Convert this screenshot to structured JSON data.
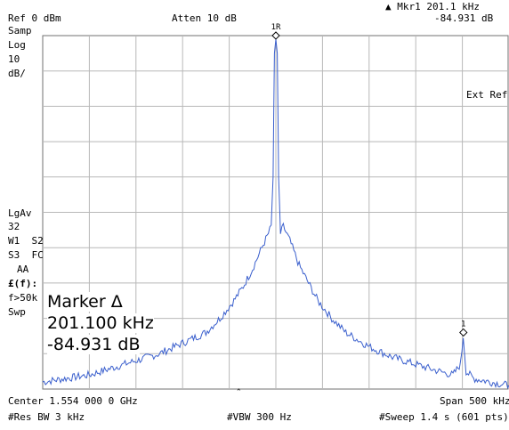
{
  "header": {
    "marker_readout": "▲ Mkr1  201.1 kHz",
    "ref_level": "Ref 0 dBm",
    "attenuation": "Atten 10 dB",
    "marker_value": "-84.931 dB"
  },
  "left_panel": {
    "samp": "Samp",
    "scale_type": "Log",
    "scale_value": "10",
    "scale_unit": "dB/",
    "avg": "LgAv",
    "avg_count": "32",
    "w1s2": "W1  S2",
    "s3fc": "S3  FC",
    "aa": "AA",
    "ff": "£(f):",
    "f50k": "f>50k",
    "swp": "Swp"
  },
  "right_panel": {
    "ext_ref": "Ext Ref"
  },
  "marker_box": {
    "title": "Marker Δ",
    "freq": "201.100 kHz",
    "level": "-84.931 dB"
  },
  "markers": {
    "ref_label": "1R",
    "delta_label": "1"
  },
  "footer": {
    "center": "Center 1.554 000 0 GHz",
    "span": "Span 500 kHz",
    "res_bw": "#Res BW 3 kHz",
    "vbw": "#VBW 300 Hz",
    "sweep": "#Sweep 1.4 s (601 pts)"
  },
  "colors": {
    "trace": "#3a5fcd",
    "grid": "#b8b8b8",
    "border": "#707070"
  },
  "chart_data": {
    "type": "line",
    "title": "",
    "xlabel": "",
    "ylabel": "",
    "center_freq": "1.554 GHz",
    "span_khz": 500,
    "xlim_khz": [
      -250,
      250
    ],
    "ylim_db": [
      -100,
      0
    ],
    "grid": true,
    "series": [
      {
        "x_khz": [
          -250,
          -225,
          -200,
          -175,
          -150,
          -125,
          -100,
          -75,
          -60,
          -45,
          -35,
          -25,
          -15,
          -8,
          -5,
          -3,
          -1.5,
          0,
          1.5,
          3,
          5,
          8,
          15,
          25,
          35,
          45,
          60,
          75,
          100,
          125,
          150,
          175,
          190,
          198,
          201,
          204,
          212,
          230,
          250
        ],
        "y_db": [
          -98,
          -97,
          -96,
          -94,
          -92,
          -90,
          -87,
          -84,
          -80,
          -75,
          -71,
          -66,
          -60,
          -56,
          -54,
          -40,
          -5,
          -1,
          -5,
          -40,
          -56,
          -54,
          -58,
          -65,
          -70,
          -75,
          -80,
          -84,
          -88,
          -91,
          -93,
          -95,
          -96,
          -93,
          -85,
          -95,
          -97,
          -98,
          -99
        ]
      }
    ],
    "marker_ref": {
      "label": "1R",
      "x_khz": 0,
      "y_db": -1
    },
    "marker_1": {
      "label": "1",
      "x_khz": 201.1,
      "y_db": -85
    }
  }
}
